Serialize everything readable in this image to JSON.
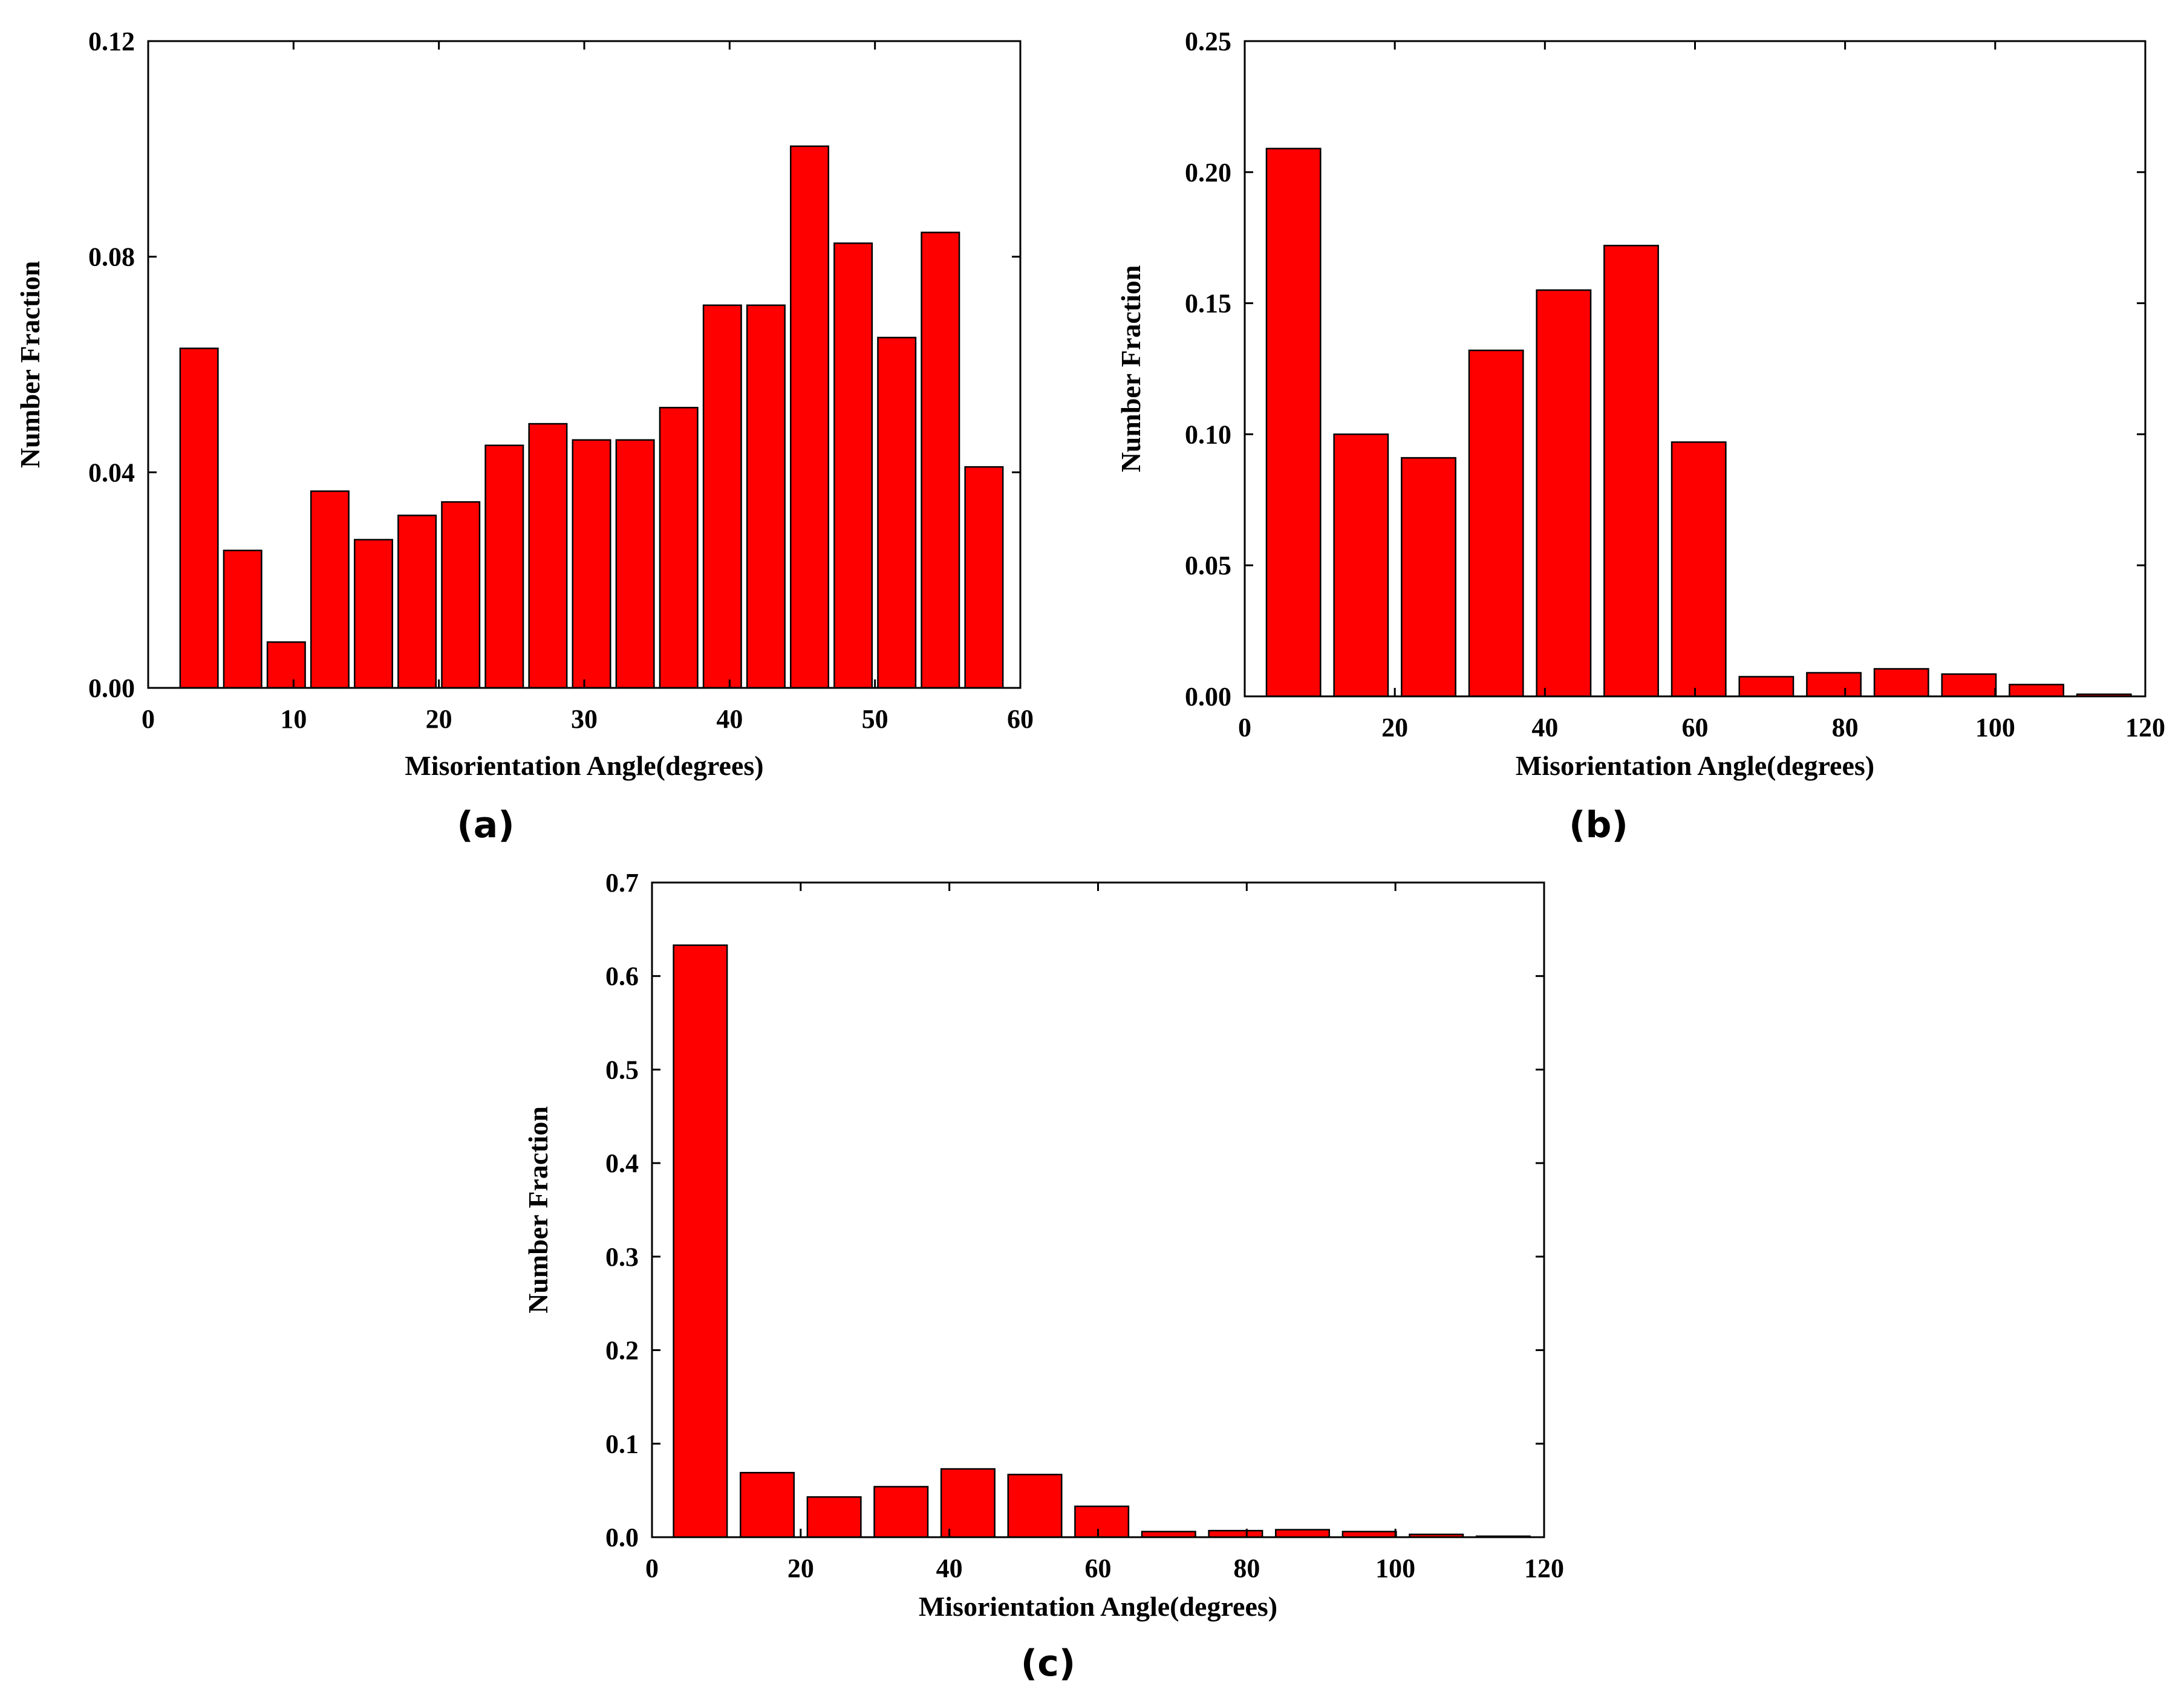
{
  "chart_data": [
    {
      "id": "a",
      "type": "bar",
      "panel_label": "(a)",
      "xlabel": "Misorientation Angle(degrees)",
      "ylabel": "Number Fraction",
      "xlim": [
        0,
        60
      ],
      "ylim": [
        0,
        0.12
      ],
      "bar_width": 2.6,
      "xticks": [
        0,
        10,
        20,
        30,
        40,
        50,
        60
      ],
      "xtick_labels": [
        "0",
        "10",
        "20",
        "30",
        "40",
        "50",
        "60"
      ],
      "yticks": [
        0,
        0.04,
        0.08,
        0.12
      ],
      "ytick_labels": [
        "0.00",
        "0.04",
        "0.08",
        "0.12"
      ],
      "x": [
        3.5,
        6.5,
        9.5,
        12.5,
        15.5,
        18.5,
        21.5,
        24.5,
        27.5,
        30.5,
        33.5,
        36.5,
        39.5,
        42.5,
        45.5,
        48.5,
        51.5,
        54.5,
        57.5
      ],
      "values": [
        0.063,
        0.0255,
        0.0085,
        0.0365,
        0.0275,
        0.032,
        0.0345,
        0.045,
        0.049,
        0.046,
        0.046,
        0.052,
        0.071,
        0.071,
        0.1005,
        0.0825,
        0.065,
        0.0845,
        0.041
      ]
    },
    {
      "id": "b",
      "type": "bar",
      "panel_label": "(b)",
      "xlabel": "Misorientation Angle(degrees)",
      "ylabel": "Number Fraction",
      "xlim": [
        0,
        120
      ],
      "ylim": [
        0,
        0.25
      ],
      "bar_width": 7.2,
      "xticks": [
        0,
        20,
        40,
        60,
        80,
        100,
        120
      ],
      "xtick_labels": [
        "0",
        "20",
        "40",
        "60",
        "80",
        "100",
        "120"
      ],
      "yticks": [
        0,
        0.05,
        0.1,
        0.15,
        0.2,
        0.25
      ],
      "ytick_labels": [
        "0.00",
        "0.05",
        "0.10",
        "0.15",
        "0.20",
        "0.25"
      ],
      "x": [
        6.5,
        15.5,
        24.5,
        33.5,
        42.5,
        51.5,
        60.5,
        69.5,
        78.5,
        87.5,
        96.5,
        105.5,
        114.5
      ],
      "values": [
        0.209,
        0.1,
        0.091,
        0.132,
        0.155,
        0.172,
        0.097,
        0.0075,
        0.009,
        0.0105,
        0.0085,
        0.0045,
        0.0008
      ]
    },
    {
      "id": "c",
      "type": "bar",
      "panel_label": "(c)",
      "xlabel": "Misorientation Angle(degrees)",
      "ylabel": "Number Fraction",
      "xlim": [
        0,
        120
      ],
      "ylim": [
        0,
        0.7
      ],
      "bar_width": 7.2,
      "xticks": [
        0,
        20,
        40,
        60,
        80,
        100,
        120
      ],
      "xtick_labels": [
        "0",
        "20",
        "40",
        "60",
        "80",
        "100",
        "120"
      ],
      "yticks": [
        0,
        0.1,
        0.2,
        0.3,
        0.4,
        0.5,
        0.6,
        0.7
      ],
      "ytick_labels": [
        "0.0",
        "0.1",
        "0.2",
        "0.3",
        "0.4",
        "0.5",
        "0.6",
        "0.7"
      ],
      "x": [
        6.5,
        15.5,
        24.5,
        33.5,
        42.5,
        51.5,
        60.5,
        69.5,
        78.5,
        87.5,
        96.5,
        105.5,
        114.5
      ],
      "values": [
        0.633,
        0.069,
        0.043,
        0.054,
        0.073,
        0.067,
        0.033,
        0.006,
        0.007,
        0.008,
        0.006,
        0.003,
        0.001
      ]
    }
  ],
  "colors": {
    "bar_fill": "#ff0000",
    "bar_stroke": "#000000",
    "frame": "#000000"
  }
}
